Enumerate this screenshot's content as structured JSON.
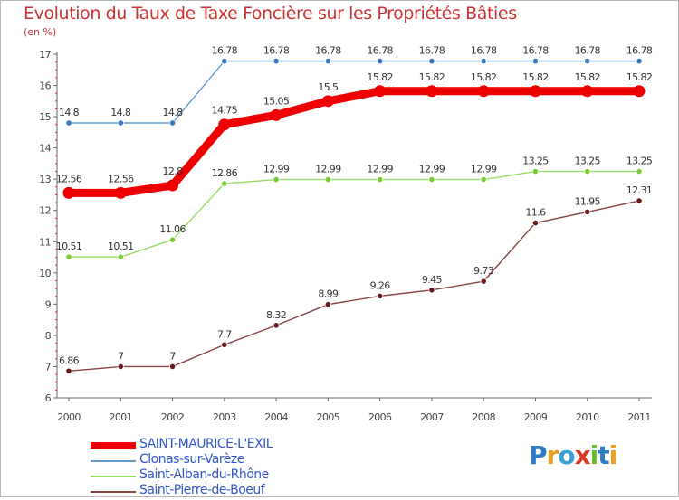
{
  "title": "Evolution du Taux de Taxe Foncière sur les Propriétés Bâties",
  "unit": "(en %)",
  "logo": {
    "letters": [
      "P",
      "r",
      "o",
      "x",
      "i",
      "t",
      "i"
    ],
    "colors": [
      "#2e7cc4",
      "#e8a020",
      "#3aa0d8",
      "#d63a2a",
      "#6cb830",
      "#2e7cc4",
      "#e8a020"
    ]
  },
  "chart_data": {
    "type": "line",
    "title": "Evolution du Taux de Taxe Foncière sur les Propriétés Bâties",
    "ylabel": "(en %)",
    "xlabel": "",
    "categories": [
      "2000",
      "2001",
      "2002",
      "2003",
      "2004",
      "2005",
      "2006",
      "2007",
      "2008",
      "2009",
      "2010",
      "2011"
    ],
    "ylim": [
      6,
      17
    ],
    "yticks": [
      "6",
      "7",
      "8",
      "9",
      "10",
      "11",
      "12",
      "13",
      "14",
      "15",
      "16",
      "17"
    ],
    "grid": false,
    "legend": "bottom-left",
    "series": [
      {
        "name": "SAINT-MAURICE-L'EXIL",
        "color": "#ee0000",
        "markerColor": "#ee0000",
        "emphasis": true,
        "values": [
          12.56,
          12.56,
          12.8,
          14.75,
          15.05,
          15.5,
          15.82,
          15.82,
          15.82,
          15.82,
          15.82,
          15.82
        ],
        "labels": [
          "12.56",
          "12.56",
          "12.8",
          "14.75",
          "15.05",
          "15.5",
          "15.82",
          "15.82",
          "15.82",
          "15.82",
          "15.82",
          "15.82"
        ]
      },
      {
        "name": "Clonas-sur-Varèze",
        "color": "#6699cc",
        "markerColor": "#3377bb",
        "emphasis": false,
        "values": [
          14.8,
          14.8,
          14.8,
          16.78,
          16.78,
          16.78,
          16.78,
          16.78,
          16.78,
          16.78,
          16.78,
          16.78
        ],
        "labels": [
          "14.8",
          "14.8",
          "14.8",
          "16.78",
          "16.78",
          "16.78",
          "16.78",
          "16.78",
          "16.78",
          "16.78",
          "16.78",
          "16.78"
        ]
      },
      {
        "name": "Saint-Alban-du-Rhône",
        "color": "#99dd66",
        "markerColor": "#77cc33",
        "emphasis": false,
        "values": [
          10.51,
          10.51,
          11.06,
          12.86,
          12.99,
          12.99,
          12.99,
          12.99,
          12.99,
          13.25,
          13.25,
          13.25
        ],
        "labels": [
          "10.51",
          "10.51",
          "11.06",
          "12.86",
          "12.99",
          "12.99",
          "12.99",
          "12.99",
          "12.99",
          "13.25",
          "13.25",
          "13.25"
        ]
      },
      {
        "name": "Saint-Pierre-de-Boeuf",
        "color": "#884444",
        "markerColor": "#661a1a",
        "emphasis": false,
        "values": [
          6.86,
          7,
          7,
          7.7,
          8.32,
          8.99,
          9.26,
          9.45,
          9.73,
          11.6,
          11.95,
          12.31
        ],
        "labels": [
          "6.86",
          "7",
          "7",
          "7.7",
          "8.32",
          "8.99",
          "9.26",
          "9.45",
          "9.73",
          "11.6",
          "11.95",
          "12.31"
        ]
      }
    ]
  }
}
